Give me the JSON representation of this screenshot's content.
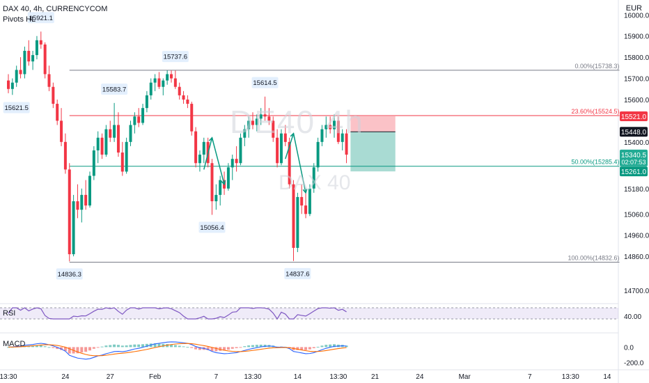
{
  "header": {
    "symbol_line": "DAX 40, 4h, CURRENCYCOM",
    "indicator_line": "Pivots HL"
  },
  "watermark": {
    "main": "DE40 4h",
    "sub": "DAX 40"
  },
  "axis_unit": "EUR",
  "price_axis": {
    "ticks": [
      {
        "value": 16000,
        "label": "16000.0"
      },
      {
        "value": 15900,
        "label": "15900.0"
      },
      {
        "value": 15800,
        "label": "15800.0"
      },
      {
        "value": 15700,
        "label": "15700.0"
      },
      {
        "value": 15600,
        "label": "15600.0"
      },
      {
        "value": 15400,
        "label": "15400.0"
      },
      {
        "value": 15180,
        "label": "15180.0"
      },
      {
        "value": 15060,
        "label": "15060.0"
      },
      {
        "value": 14960,
        "label": "14960.0"
      },
      {
        "value": 14860,
        "label": "14860.0"
      },
      {
        "value": 14700,
        "label": "14700.0"
      }
    ],
    "badges": [
      {
        "label": "15521.0",
        "value": 15521,
        "color": "#f23645"
      },
      {
        "label": "15448.0",
        "value": 15448,
        "color": "#131722"
      },
      {
        "label": "15340.5",
        "sub": "02:07:53",
        "value": 15340.5,
        "color": "#22ab94"
      },
      {
        "label": "15261.0",
        "value": 15261,
        "color": "#089981"
      }
    ]
  },
  "time_axis": {
    "labels": [
      {
        "bar": 0,
        "text": "13:30"
      },
      {
        "bar": 14,
        "text": "24"
      },
      {
        "bar": 25,
        "text": "27"
      },
      {
        "bar": 36,
        "text": "Feb"
      },
      {
        "bar": 51,
        "text": "7"
      },
      {
        "bar": 60,
        "text": "13:30"
      },
      {
        "bar": 71,
        "text": "14"
      },
      {
        "bar": 81,
        "text": "13:30"
      },
      {
        "bar": 90,
        "text": "21"
      },
      {
        "bar": 101,
        "text": "24"
      },
      {
        "bar": 112,
        "text": "Mar"
      },
      {
        "bar": 128,
        "text": "7"
      },
      {
        "bar": 138,
        "text": "13:30"
      },
      {
        "bar": 147,
        "text": "14"
      }
    ]
  },
  "pivots": [
    {
      "label": "15921.1",
      "bar": 8,
      "price": 15921.1,
      "side": "high"
    },
    {
      "label": "15621.5",
      "bar": 2,
      "price": 15621.5,
      "side": "low"
    },
    {
      "label": "15583.7",
      "bar": 26,
      "price": 15583.7,
      "side": "high"
    },
    {
      "label": "15737.6",
      "bar": 41,
      "price": 15737.6,
      "side": "high"
    },
    {
      "label": "15614.5",
      "bar": 63,
      "price": 15614.5,
      "side": "high"
    },
    {
      "label": "15056.4",
      "bar": 50,
      "price": 15056.4,
      "side": "low"
    },
    {
      "label": "14836.3",
      "bar": 15,
      "price": 14836.3,
      "side": "low"
    },
    {
      "label": "14837.6",
      "bar": 71,
      "price": 14837.6,
      "side": "low"
    }
  ],
  "fib_levels": [
    {
      "label": "0.00%(15738.3)",
      "price": 15738.3,
      "color": "#787b86"
    },
    {
      "label": "23.60%(15524.5)",
      "price": 15524.5,
      "color": "#f23645"
    },
    {
      "label": "50.00%(15285.4)",
      "price": 15285.4,
      "color": "#089981"
    },
    {
      "label": "100.00%(14832.6)",
      "price": 14832.6,
      "color": "#787b86"
    }
  ],
  "position_tool": {
    "entry": 15448,
    "stop": 15521,
    "target": 15261,
    "bar_start": 84,
    "bar_end": 95
  },
  "arrows": [
    {
      "from_bar": 48,
      "from": 15270,
      "to_bar": 50,
      "to": 15420
    },
    {
      "from_bar": 50,
      "from": 15420,
      "to_bar": 53,
      "to": 15200
    },
    {
      "from_bar": 68,
      "from": 15320,
      "to_bar": 70,
      "to": 15440
    },
    {
      "from_bar": 70,
      "from": 15440,
      "to_bar": 73,
      "to": 15160
    }
  ],
  "rsi": {
    "label": "RSI",
    "tick": "40.00",
    "band": [
      30,
      70
    ]
  },
  "macd": {
    "label": "MACD",
    "ticks": [
      "0.0",
      "-200.0"
    ]
  },
  "chart_data": {
    "type": "candlestick",
    "title": "DAX 40, 4h, CURRENCYCOM",
    "bars": [
      [
        15690,
        15720,
        15630,
        15650
      ],
      [
        15650,
        15700,
        15622,
        15680
      ],
      [
        15680,
        15760,
        15660,
        15740
      ],
      [
        15740,
        15800,
        15700,
        15720
      ],
      [
        15720,
        15850,
        15700,
        15830
      ],
      [
        15830,
        15880,
        15760,
        15780
      ],
      [
        15780,
        15830,
        15740,
        15810
      ],
      [
        15810,
        15900,
        15790,
        15880
      ],
      [
        15880,
        15921,
        15840,
        15860
      ],
      [
        15860,
        15870,
        15700,
        15720
      ],
      [
        15720,
        15760,
        15640,
        15660
      ],
      [
        15660,
        15680,
        15560,
        15580
      ],
      [
        15580,
        15600,
        15480,
        15500
      ],
      [
        15500,
        15560,
        15380,
        15400
      ],
      [
        15400,
        15440,
        15250,
        15270
      ],
      [
        15270,
        15300,
        14836,
        14870
      ],
      [
        14870,
        15150,
        14860,
        15120
      ],
      [
        15120,
        15200,
        15040,
        15080
      ],
      [
        15080,
        15180,
        15020,
        15150
      ],
      [
        15150,
        15220,
        15080,
        15100
      ],
      [
        15100,
        15260,
        15090,
        15240
      ],
      [
        15240,
        15380,
        15220,
        15360
      ],
      [
        15360,
        15450,
        15300,
        15420
      ],
      [
        15420,
        15440,
        15320,
        15340
      ],
      [
        15340,
        15480,
        15330,
        15460
      ],
      [
        15460,
        15500,
        15400,
        15420
      ],
      [
        15420,
        15584,
        15400,
        15480
      ],
      [
        15480,
        15540,
        15330,
        15350
      ],
      [
        15350,
        15400,
        15240,
        15260
      ],
      [
        15260,
        15420,
        15250,
        15400
      ],
      [
        15400,
        15500,
        15380,
        15480
      ],
      [
        15480,
        15540,
        15440,
        15520
      ],
      [
        15520,
        15560,
        15470,
        15490
      ],
      [
        15490,
        15580,
        15480,
        15560
      ],
      [
        15560,
        15640,
        15540,
        15620
      ],
      [
        15620,
        15700,
        15600,
        15680
      ],
      [
        15680,
        15720,
        15640,
        15700
      ],
      [
        15700,
        15730,
        15650,
        15660
      ],
      [
        15660,
        15700,
        15620,
        15690
      ],
      [
        15690,
        15738,
        15670,
        15720
      ],
      [
        15720,
        15737,
        15680,
        15700
      ],
      [
        15700,
        15737,
        15650,
        15660
      ],
      [
        15660,
        15680,
        15600,
        15620
      ],
      [
        15620,
        15640,
        15580,
        15600
      ],
      [
        15600,
        15620,
        15560,
        15580
      ],
      [
        15580,
        15590,
        15430,
        15450
      ],
      [
        15450,
        15470,
        15280,
        15300
      ],
      [
        15300,
        15360,
        15260,
        15340
      ],
      [
        15340,
        15420,
        15300,
        15400
      ],
      [
        15400,
        15420,
        15280,
        15300
      ],
      [
        15300,
        15320,
        15056,
        15120
      ],
      [
        15120,
        15200,
        15080,
        15150
      ],
      [
        15150,
        15240,
        15100,
        15220
      ],
      [
        15220,
        15260,
        15150,
        15180
      ],
      [
        15180,
        15300,
        15170,
        15280
      ],
      [
        15280,
        15340,
        15220,
        15320
      ],
      [
        15320,
        15380,
        15260,
        15300
      ],
      [
        15300,
        15440,
        15290,
        15420
      ],
      [
        15420,
        15480,
        15380,
        15460
      ],
      [
        15460,
        15520,
        15420,
        15500
      ],
      [
        15500,
        15540,
        15460,
        15480
      ],
      [
        15480,
        15530,
        15450,
        15510
      ],
      [
        15510,
        15560,
        15480,
        15530
      ],
      [
        15530,
        15614,
        15500,
        15520
      ],
      [
        15520,
        15560,
        15480,
        15500
      ],
      [
        15500,
        15520,
        15400,
        15420
      ],
      [
        15420,
        15460,
        15280,
        15300
      ],
      [
        15300,
        15460,
        15290,
        15440
      ],
      [
        15440,
        15480,
        15380,
        15400
      ],
      [
        15400,
        15420,
        15180,
        15200
      ],
      [
        15200,
        15220,
        14838,
        14900
      ],
      [
        14900,
        15160,
        14880,
        15140
      ],
      [
        15140,
        15200,
        15060,
        15100
      ],
      [
        15100,
        15160,
        15040,
        15060
      ],
      [
        15060,
        15200,
        15050,
        15180
      ],
      [
        15180,
        15300,
        15160,
        15280
      ],
      [
        15280,
        15420,
        15260,
        15400
      ],
      [
        15400,
        15480,
        15380,
        15460
      ],
      [
        15460,
        15520,
        15420,
        15480
      ],
      [
        15480,
        15520,
        15440,
        15460
      ],
      [
        15460,
        15530,
        15420,
        15500
      ],
      [
        15500,
        15520,
        15390,
        15400
      ],
      [
        15400,
        15460,
        15360,
        15440
      ],
      [
        15440,
        15460,
        15300,
        15340
      ]
    ],
    "ylim": [
      14650,
      16070
    ]
  }
}
